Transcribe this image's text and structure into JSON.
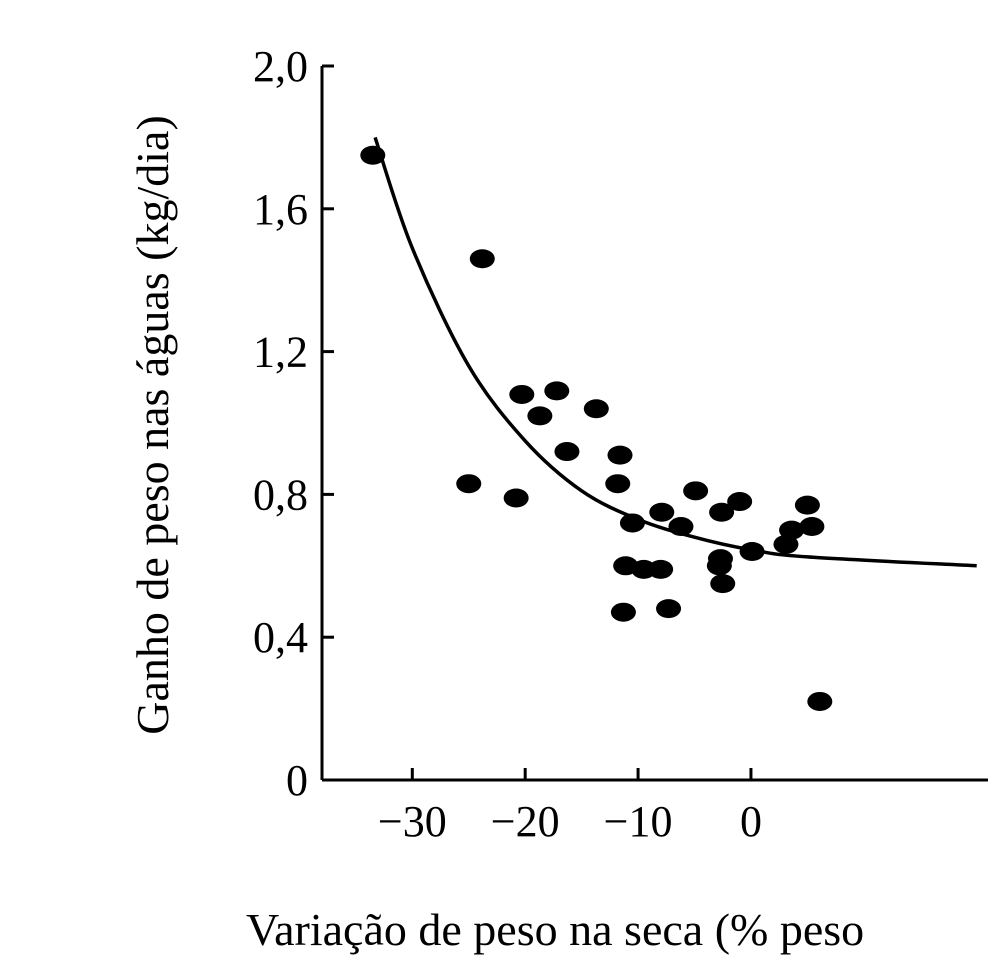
{
  "chart_data": {
    "type": "scatter",
    "title": "",
    "xlabel": "Variação de peso na seca (% peso",
    "ylabel": "Ganho de peso nas águas (kg/dia)",
    "xlim": [
      -38,
      21
    ],
    "ylim": [
      0,
      2.0
    ],
    "x_ticks": [
      -30,
      -20,
      -10,
      0
    ],
    "x_tick_labels": [
      "−30",
      "−20",
      "−10",
      "0"
    ],
    "y_ticks": [
      0,
      0.4,
      0.8,
      1.2,
      1.6,
      2.0
    ],
    "y_tick_labels": [
      "0",
      "0,4",
      "0,8",
      "1,2",
      "1,6",
      "2,0"
    ],
    "grid": false,
    "colors": {
      "points": "#000000",
      "curve": "#000000",
      "axes": "#000000"
    },
    "series": [
      {
        "kind": "points",
        "x": [
          -33.5,
          -23.8,
          -25.0,
          -20.3,
          -18.7,
          -20.8,
          -17.2,
          -16.3,
          -13.7,
          -11.6,
          -11.8,
          -10.5,
          -11.1,
          -9.5,
          -7.9,
          -7.3,
          -11.3,
          -8.0,
          -6.2,
          -4.9,
          -2.6,
          -2.7,
          -1.0,
          -2.8,
          -2.5,
          0.1,
          3.1,
          3.6,
          5.0,
          5.4,
          6.1
        ],
        "y": [
          1.75,
          1.46,
          0.83,
          1.08,
          1.02,
          0.79,
          1.09,
          0.92,
          1.04,
          0.91,
          0.83,
          0.72,
          0.6,
          0.59,
          0.75,
          0.48,
          0.47,
          0.59,
          0.71,
          0.81,
          0.75,
          0.62,
          0.78,
          0.6,
          0.55,
          0.64,
          0.66,
          0.7,
          0.77,
          0.71,
          0.22
        ]
      },
      {
        "kind": "fitted-curve",
        "x": [
          -33.3,
          -30,
          -25,
          -20,
          -15,
          -10,
          -5,
          0,
          5,
          20
        ],
        "y": [
          1.8,
          1.49,
          1.16,
          0.95,
          0.81,
          0.73,
          0.68,
          0.645,
          0.625,
          0.6
        ]
      }
    ]
  }
}
